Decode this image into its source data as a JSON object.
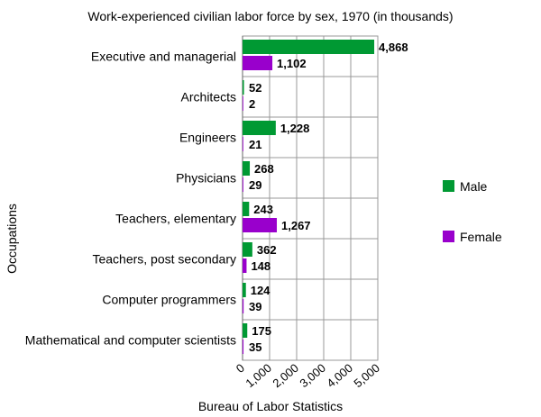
{
  "chart_data": {
    "type": "bar",
    "orientation": "horizontal",
    "title": "Work-experienced civilian labor force by sex, 1970 (in thousands)",
    "ylabel": "Occupations",
    "xlabel": "Bureau of Labor Statistics",
    "categories": [
      "Executive and managerial",
      "Architects",
      "Engineers",
      "Physicians",
      "Teachers, elementary",
      "Teachers, post secondary",
      "Computer programmers",
      "Mathematical and computer scientists"
    ],
    "series": [
      {
        "name": "Male",
        "color": "#009933",
        "values": [
          4868,
          52,
          1228,
          268,
          243,
          362,
          124,
          175
        ],
        "labels": [
          "4,868",
          "52",
          "1,228",
          "268",
          "243",
          "362",
          "124",
          "175"
        ]
      },
      {
        "name": "Female",
        "color": "#9900cc",
        "values": [
          1102,
          2,
          21,
          29,
          1267,
          148,
          39,
          35
        ],
        "labels": [
          "1,102",
          "2",
          "21",
          "29",
          "1,267",
          "148",
          "39",
          "35"
        ]
      }
    ],
    "xlim": [
      0,
      5000
    ],
    "xticks": [
      0,
      1000,
      2000,
      3000,
      4000,
      5000
    ],
    "xtick_labels": [
      "0",
      "1,000",
      "2,000",
      "3,000",
      "4,000",
      "5,000"
    ],
    "grid": true,
    "legend_position": "right"
  }
}
